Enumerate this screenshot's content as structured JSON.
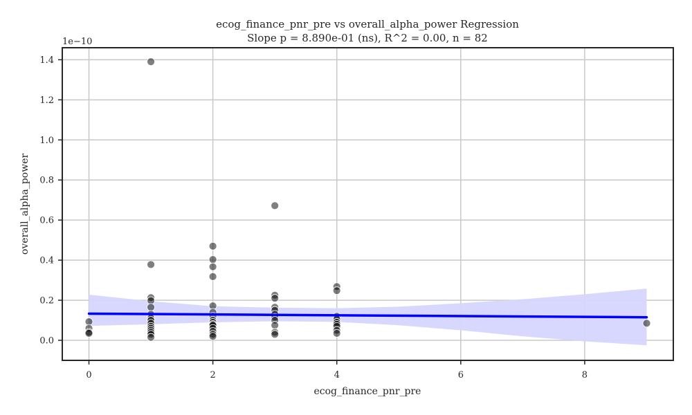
{
  "chart_data": {
    "type": "scatter",
    "title": "ecog_finance_pnr_pre vs overall_alpha_power Regression",
    "subtitle": "Slope p = 8.890e-01 (ns), R^2 = 0.00, n = 82",
    "xlabel": "ecog_finance_pnr_pre",
    "ylabel": "overall_alpha_power",
    "y_scale_label": "1e−10",
    "xlim": [
      -0.43,
      9.43
    ],
    "ylim": [
      -0.1,
      1.46
    ],
    "y_unit_multiplier": 1e-10,
    "x_ticks": [
      0,
      2,
      4,
      6,
      8
    ],
    "x_tick_labels": [
      "0",
      "2",
      "4",
      "6",
      "8"
    ],
    "y_ticks": [
      0.0,
      0.2,
      0.4,
      0.6,
      0.8,
      1.0,
      1.2,
      1.4
    ],
    "y_tick_labels": [
      "0.0",
      "0.2",
      "0.4",
      "0.6",
      "0.8",
      "1.0",
      "1.2",
      "1.4"
    ],
    "grid": true,
    "points": [
      {
        "x": 0,
        "y": 0.093
      },
      {
        "x": 0,
        "y": 0.06
      },
      {
        "x": 0,
        "y": 0.04
      },
      {
        "x": 0,
        "y": 0.035
      },
      {
        "x": 1,
        "y": 1.39
      },
      {
        "x": 1,
        "y": 0.378
      },
      {
        "x": 1,
        "y": 0.213
      },
      {
        "x": 1,
        "y": 0.198
      },
      {
        "x": 1,
        "y": 0.165
      },
      {
        "x": 1,
        "y": 0.13
      },
      {
        "x": 1,
        "y": 0.11
      },
      {
        "x": 1,
        "y": 0.1
      },
      {
        "x": 1,
        "y": 0.085
      },
      {
        "x": 1,
        "y": 0.07
      },
      {
        "x": 1,
        "y": 0.06
      },
      {
        "x": 1,
        "y": 0.05
      },
      {
        "x": 1,
        "y": 0.04
      },
      {
        "x": 1,
        "y": 0.03
      },
      {
        "x": 1,
        "y": 0.015
      },
      {
        "x": 2,
        "y": 0.47
      },
      {
        "x": 2,
        "y": 0.403
      },
      {
        "x": 2,
        "y": 0.367
      },
      {
        "x": 2,
        "y": 0.318
      },
      {
        "x": 2,
        "y": 0.172
      },
      {
        "x": 2,
        "y": 0.14
      },
      {
        "x": 2,
        "y": 0.12
      },
      {
        "x": 2,
        "y": 0.1
      },
      {
        "x": 2,
        "y": 0.09
      },
      {
        "x": 2,
        "y": 0.08
      },
      {
        "x": 2,
        "y": 0.075
      },
      {
        "x": 2,
        "y": 0.06
      },
      {
        "x": 2,
        "y": 0.045
      },
      {
        "x": 2,
        "y": 0.03
      },
      {
        "x": 2,
        "y": 0.02
      },
      {
        "x": 3,
        "y": 0.672
      },
      {
        "x": 3,
        "y": 0.225
      },
      {
        "x": 3,
        "y": 0.21
      },
      {
        "x": 3,
        "y": 0.165
      },
      {
        "x": 3,
        "y": 0.15
      },
      {
        "x": 3,
        "y": 0.13
      },
      {
        "x": 3,
        "y": 0.115
      },
      {
        "x": 3,
        "y": 0.1
      },
      {
        "x": 3,
        "y": 0.075
      },
      {
        "x": 3,
        "y": 0.04
      },
      {
        "x": 3,
        "y": 0.03
      },
      {
        "x": 4,
        "y": 0.268
      },
      {
        "x": 4,
        "y": 0.248
      },
      {
        "x": 4,
        "y": 0.12
      },
      {
        "x": 4,
        "y": 0.105
      },
      {
        "x": 4,
        "y": 0.09
      },
      {
        "x": 4,
        "y": 0.08
      },
      {
        "x": 4,
        "y": 0.07
      },
      {
        "x": 4,
        "y": 0.05
      },
      {
        "x": 4,
        "y": 0.035
      },
      {
        "x": 9,
        "y": 0.085
      }
    ],
    "regression_line": {
      "x": [
        0,
        9
      ],
      "y": [
        0.133,
        0.115
      ],
      "color": "#0000ff"
    },
    "confidence_band": {
      "x": [
        0,
        1,
        2,
        3,
        4,
        5,
        6,
        7,
        8,
        9
      ],
      "upper": [
        0.228,
        0.195,
        0.17,
        0.163,
        0.16,
        0.168,
        0.185,
        0.205,
        0.23,
        0.258
      ],
      "lower": [
        0.072,
        0.08,
        0.09,
        0.095,
        0.092,
        0.075,
        0.05,
        0.02,
        -0.005,
        -0.025
      ],
      "color": "#d6d6ff"
    },
    "colors": {
      "point": "#000000",
      "point_opacity": 0.5,
      "line": "#0000ff",
      "band": "#d6d6ff",
      "grid": "#c8c8c8"
    }
  }
}
